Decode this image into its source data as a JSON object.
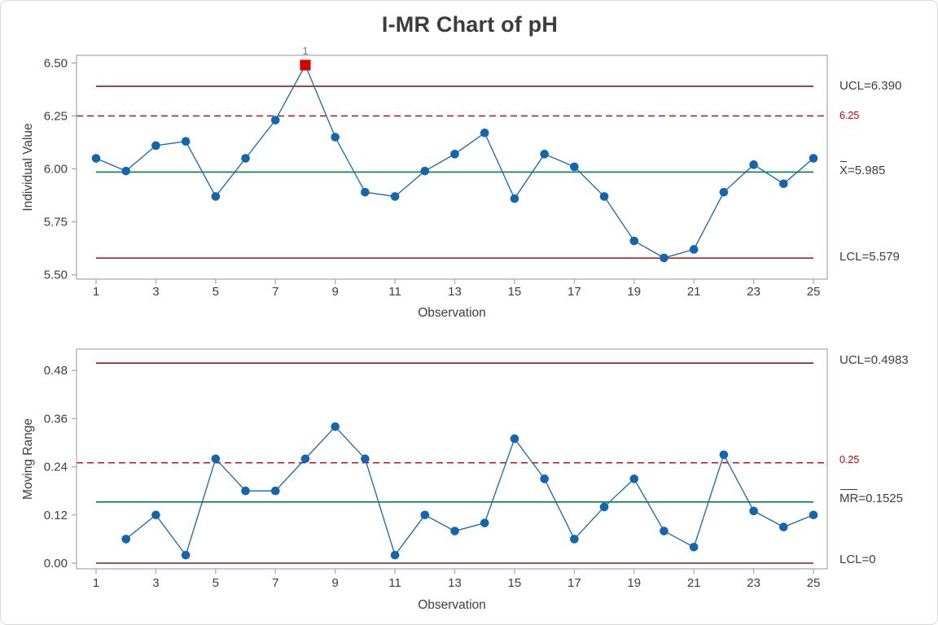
{
  "title": "I-MR Chart of pH",
  "annotations": {
    "individuals": {
      "ucl_label": "UCL=6.390",
      "center_prefix": "X",
      "center_rest": "=5.985",
      "lcl_label": "LCL=5.579",
      "spec_label": "6.25",
      "out_of_control_flag": "1"
    },
    "moving_range": {
      "ucl_label": "UCL=0.4983",
      "center_prefix": "MR",
      "center_rest": "=0.1525",
      "lcl_label": "LCL=0",
      "spec_label": "0.25"
    }
  },
  "colors": {
    "point_blue": "#1565ae",
    "line_blue": "#1565ae",
    "center_green": "#008240",
    "limit_maroon": "#8e1b1b",
    "spec_red": "#c00000",
    "ooc_red": "#d20000",
    "frame_gray": "#a6a6a6",
    "text_dark": "#3d3d3d",
    "flag_gray": "#757575"
  },
  "chart_data": [
    {
      "type": "line",
      "name": "individuals",
      "xlabel": "Observation",
      "ylabel": "Individual Value",
      "x": [
        1,
        2,
        3,
        4,
        5,
        6,
        7,
        8,
        9,
        10,
        11,
        12,
        13,
        14,
        15,
        16,
        17,
        18,
        19,
        20,
        21,
        22,
        23,
        24,
        25
      ],
      "values": [
        6.05,
        5.99,
        6.11,
        6.13,
        5.87,
        6.05,
        6.23,
        6.49,
        6.15,
        5.89,
        5.87,
        5.99,
        6.07,
        6.17,
        5.86,
        6.07,
        6.01,
        5.87,
        5.66,
        5.58,
        5.62,
        5.89,
        6.02,
        5.93,
        6.05
      ],
      "center_line": 5.985,
      "ucl": 6.39,
      "lcl": 5.579,
      "spec_line": 6.25,
      "ylim": [
        5.48,
        6.56
      ],
      "yticks": [
        6.5,
        6.25,
        6.0,
        5.75,
        5.5
      ],
      "ytick_labels": [
        "6.50",
        "6.25",
        "6.00",
        "5.75",
        "5.50"
      ],
      "xticks": [
        1,
        3,
        5,
        7,
        9,
        11,
        13,
        15,
        17,
        19,
        21,
        23,
        25
      ],
      "out_of_control_points": [
        8
      ],
      "legend": "none",
      "grid": false
    },
    {
      "type": "line",
      "name": "moving_range",
      "xlabel": "Observation",
      "ylabel": "Moving Range",
      "x": [
        2,
        3,
        4,
        5,
        6,
        7,
        8,
        9,
        10,
        11,
        12,
        13,
        14,
        15,
        16,
        17,
        18,
        19,
        20,
        21,
        22,
        23,
        24,
        25
      ],
      "values": [
        0.06,
        0.12,
        0.02,
        0.26,
        0.18,
        0.18,
        0.26,
        0.34,
        0.26,
        0.02,
        0.12,
        0.08,
        0.1,
        0.31,
        0.21,
        0.06,
        0.14,
        0.21,
        0.08,
        0.04,
        0.27,
        0.13,
        0.09,
        0.12
      ],
      "center_line": 0.1525,
      "ucl": 0.4983,
      "lcl": 0,
      "spec_line": 0.25,
      "ylim": [
        -0.03,
        0.53
      ],
      "yticks": [
        0.48,
        0.36,
        0.24,
        0.12,
        0.0
      ],
      "ytick_labels": [
        "0.48",
        "0.36",
        "0.24",
        "0.12",
        "0.00"
      ],
      "xticks": [
        1,
        3,
        5,
        7,
        9,
        11,
        13,
        15,
        17,
        19,
        21,
        23,
        25
      ],
      "out_of_control_points": [],
      "legend": "none",
      "grid": false
    }
  ]
}
